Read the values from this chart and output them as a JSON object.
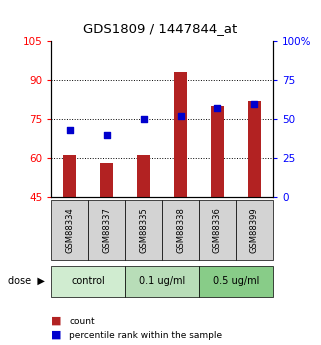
{
  "title": "GDS1809 / 1447844_at",
  "samples": [
    "GSM88334",
    "GSM88337",
    "GSM88335",
    "GSM88338",
    "GSM88336",
    "GSM88399"
  ],
  "count_values": [
    61,
    58,
    61,
    93,
    80,
    82
  ],
  "percentile_values": [
    43,
    40,
    50,
    52,
    57,
    60
  ],
  "ylim_left": [
    45,
    105
  ],
  "ylim_right": [
    0,
    100
  ],
  "yticks_left": [
    45,
    60,
    75,
    90,
    105
  ],
  "yticks_right": [
    0,
    25,
    50,
    75,
    100
  ],
  "ytick_labels_right": [
    "0",
    "25",
    "50",
    "75",
    "100%"
  ],
  "bar_color": "#b22222",
  "dot_color": "#0000cd",
  "dose_groups": [
    {
      "label": "control",
      "indices": [
        0,
        1
      ]
    },
    {
      "label": "0.1 ug/ml",
      "indices": [
        2,
        3
      ]
    },
    {
      "label": "0.5 ug/ml",
      "indices": [
        4,
        5
      ]
    }
  ],
  "dose_colors": [
    "#d0ecd0",
    "#b8ddb8",
    "#88cc88"
  ],
  "legend_count": "count",
  "legend_percentile": "percentile rank within the sample",
  "bg_color": "#ffffff",
  "sample_bg_color": "#d3d3d3",
  "bar_width": 0.35
}
